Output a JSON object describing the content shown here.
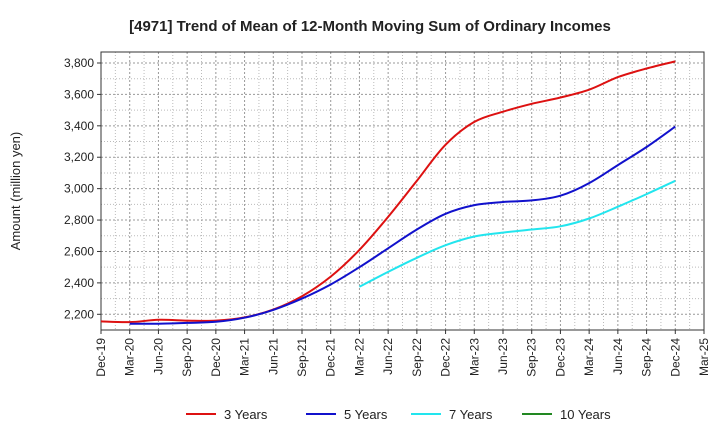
{
  "chart_data": {
    "type": "line",
    "title": "[4971]  Trend of Mean of 12-Month Moving Sum of Ordinary Incomes",
    "xlabel": "",
    "ylabel": "Amount (million yen)",
    "ylim": [
      2100,
      3870
    ],
    "yticks": [
      2200,
      2400,
      2600,
      2800,
      3000,
      3200,
      3400,
      3600,
      3800
    ],
    "ytick_labels": [
      "2,200",
      "2,400",
      "2,600",
      "2,800",
      "3,000",
      "3,200",
      "3,400",
      "3,600",
      "3,800"
    ],
    "categories": [
      "Dec-19",
      "Mar-20",
      "Jun-20",
      "Sep-20",
      "Dec-20",
      "Mar-21",
      "Jun-21",
      "Sep-21",
      "Dec-21",
      "Mar-22",
      "Jun-22",
      "Sep-22",
      "Dec-22",
      "Mar-23",
      "Jun-23",
      "Sep-23",
      "Dec-23",
      "Mar-24",
      "Jun-24",
      "Sep-24",
      "Dec-24",
      "Mar-25"
    ],
    "grid": true,
    "legend_position": "bottom",
    "series": [
      {
        "name": "3 Years",
        "color": "#dd1111",
        "values": [
          2155,
          2150,
          2165,
          2160,
          2160,
          2180,
          2230,
          2315,
          2440,
          2610,
          2820,
          3050,
          3280,
          3425,
          3490,
          3540,
          3580,
          3630,
          3710,
          3765,
          3810,
          null
        ]
      },
      {
        "name": "5 Years",
        "color": "#1111cc",
        "values": [
          null,
          2140,
          2140,
          2145,
          2152,
          2178,
          2228,
          2300,
          2390,
          2500,
          2620,
          2740,
          2840,
          2895,
          2915,
          2925,
          2955,
          3035,
          3150,
          3265,
          3395,
          null
        ]
      },
      {
        "name": "7 Years",
        "color": "#22e5ee",
        "values": [
          null,
          null,
          null,
          null,
          null,
          null,
          null,
          null,
          null,
          2375,
          2470,
          2560,
          2640,
          2695,
          2720,
          2740,
          2760,
          2810,
          2885,
          2965,
          3050,
          null
        ]
      },
      {
        "name": "10 Years",
        "color": "#228822",
        "values": [
          null,
          null,
          null,
          null,
          null,
          null,
          null,
          null,
          null,
          null,
          null,
          null,
          null,
          null,
          null,
          null,
          null,
          null,
          null,
          null,
          null,
          null
        ]
      }
    ]
  }
}
